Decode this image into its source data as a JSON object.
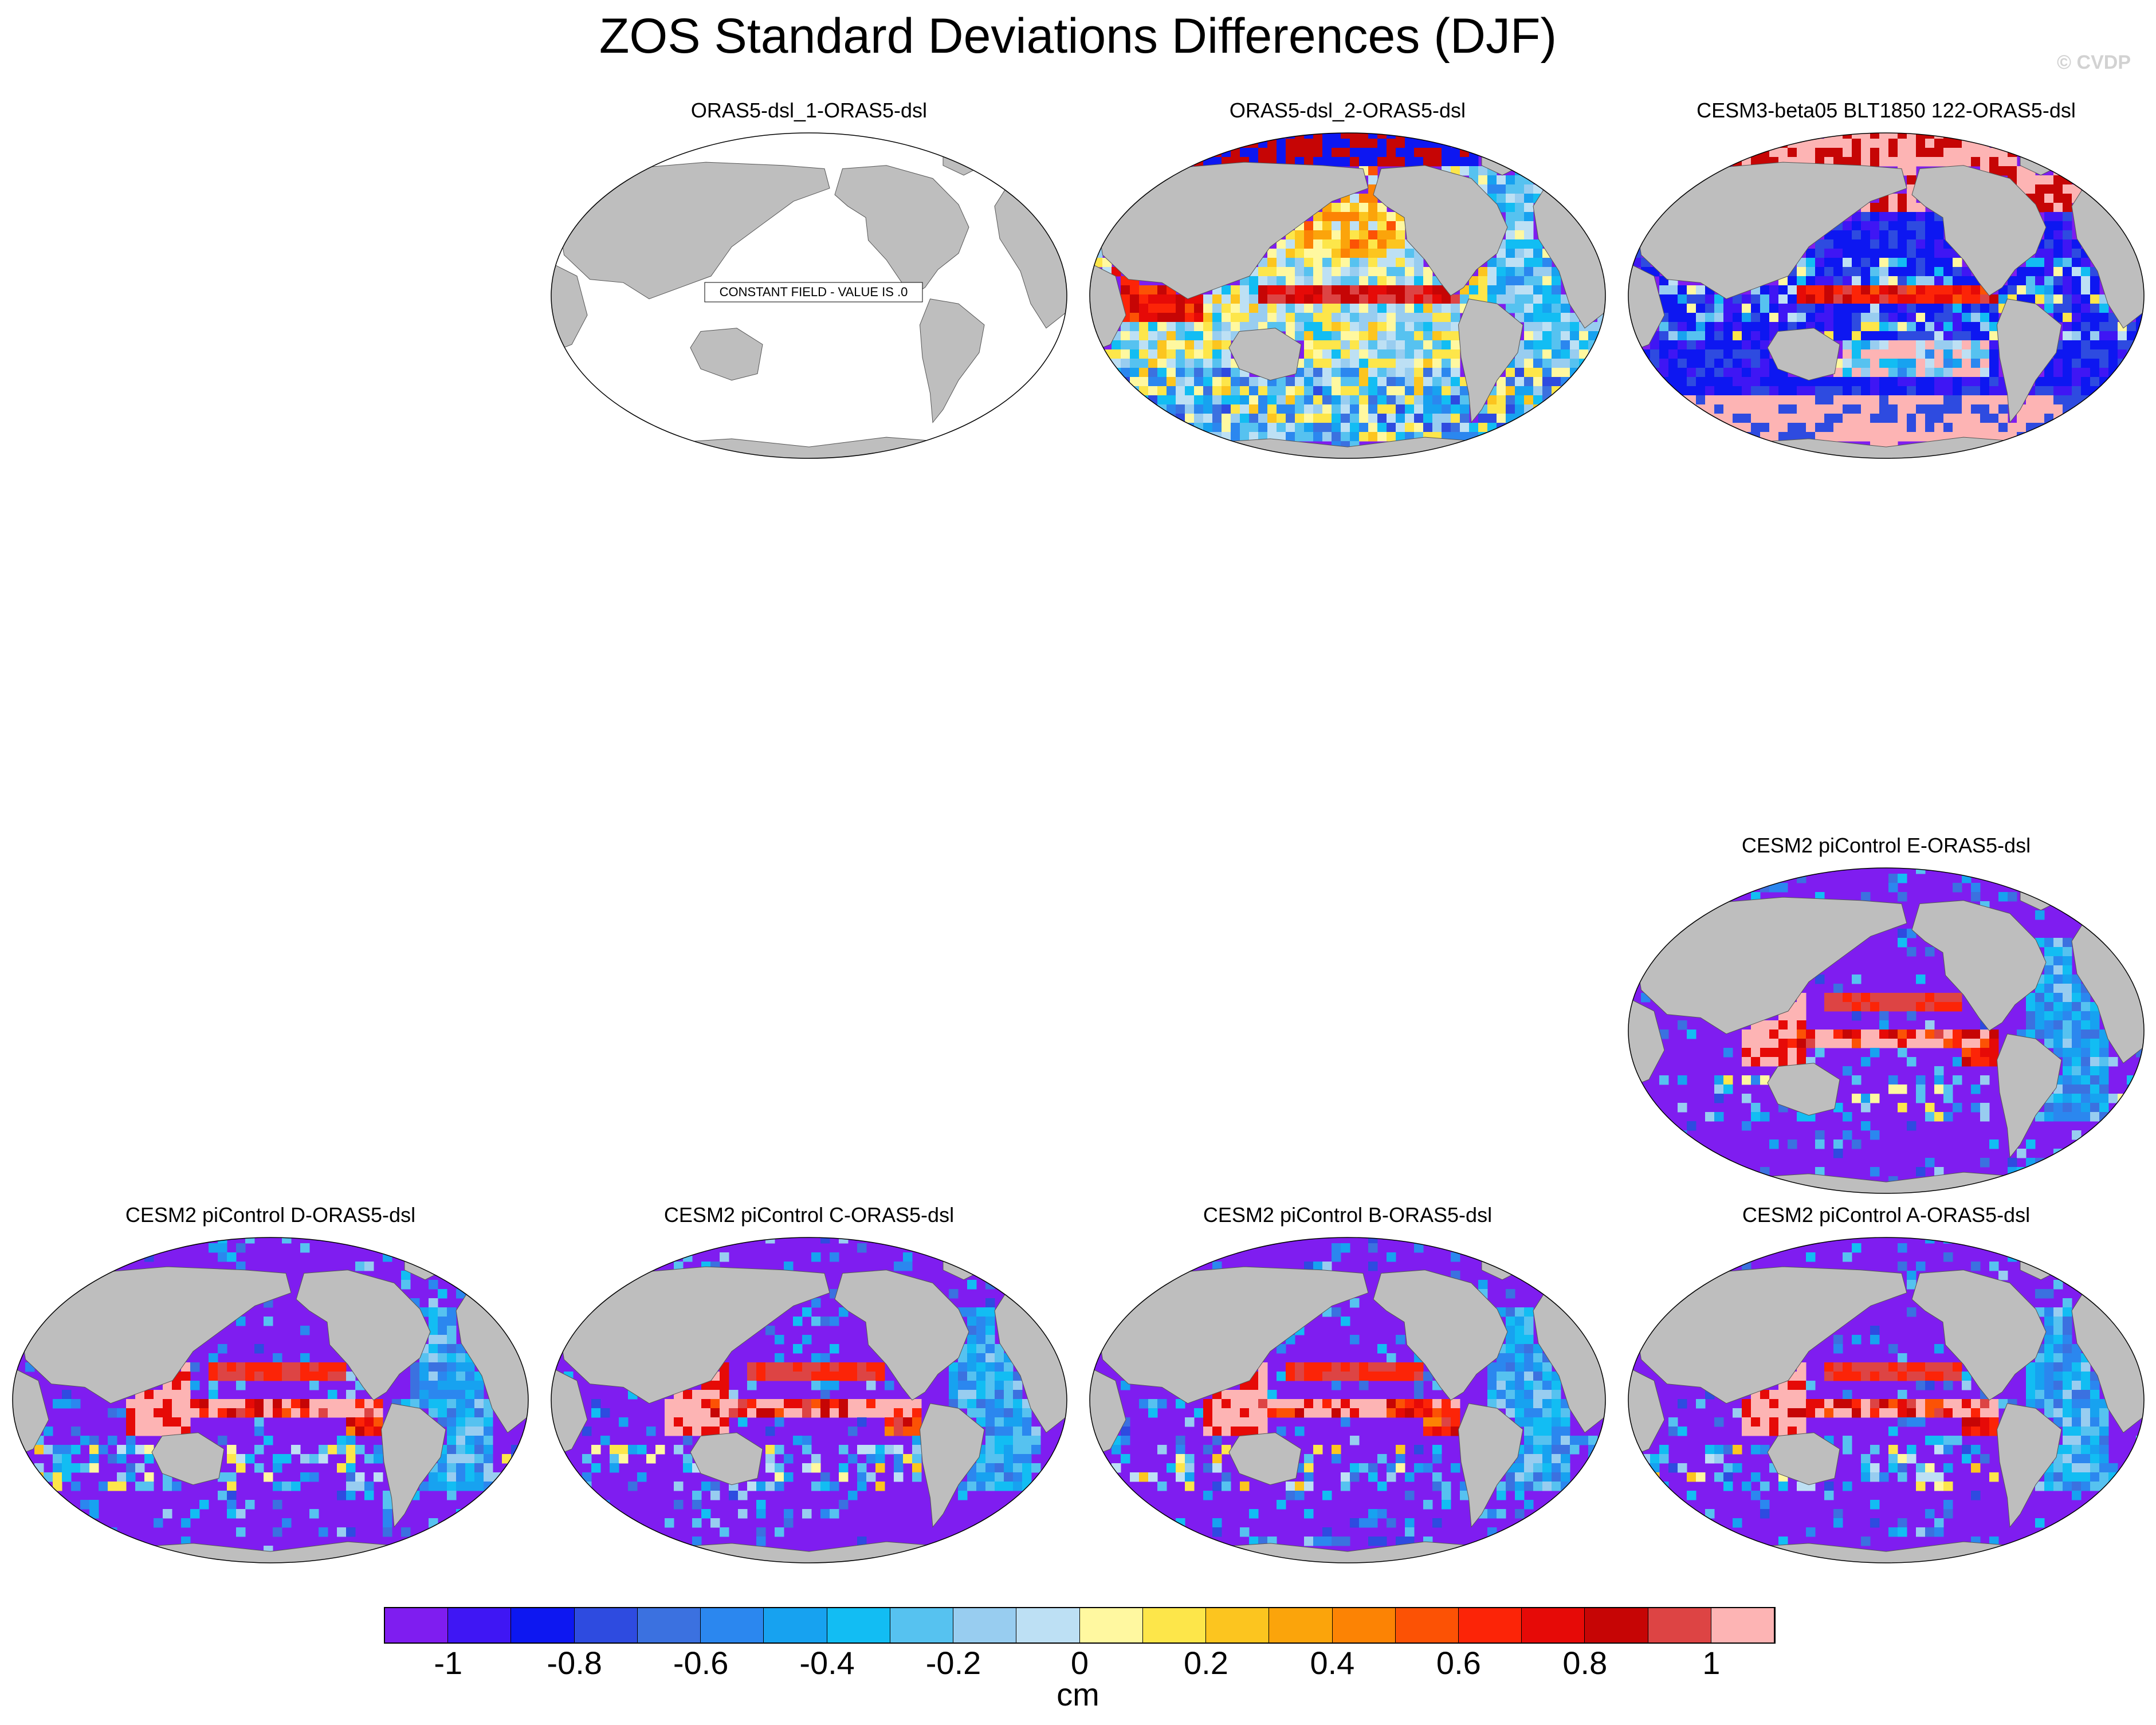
{
  "figure": {
    "title": "ZOS Standard Deviations Differences (DJF)",
    "watermark": "© CVDP"
  },
  "panels": [
    {
      "title": "ORAS5-dsl_1-ORAS5-dsl",
      "pattern": "constant",
      "constant_label": "CONSTANT FIELD - VALUE IS .0"
    },
    {
      "title": "ORAS5-dsl_2-ORAS5-dsl",
      "pattern": "mixed"
    },
    {
      "title": "CESM3-beta05 BLT1850 122-ORAS5-dsl",
      "pattern": "cesm3"
    },
    {
      "title": "CESM2 piControl E-ORAS5-dsl",
      "pattern": "cesm2"
    },
    {
      "title": "CESM2 piControl D-ORAS5-dsl",
      "pattern": "cesm2"
    },
    {
      "title": "CESM2 piControl C-ORAS5-dsl",
      "pattern": "cesm2"
    },
    {
      "title": "CESM2 piControl B-ORAS5-dsl",
      "pattern": "cesm2"
    },
    {
      "title": "CESM2 piControl A-ORAS5-dsl",
      "pattern": "cesm2"
    }
  ],
  "colorbar": {
    "unit": "cm",
    "colors": [
      "#7f1df0",
      "#3f16f4",
      "#0d17f1",
      "#2e4be0",
      "#3b71e0",
      "#2b87ef",
      "#17a2f0",
      "#12bdf3",
      "#56c2f0",
      "#98cdf0",
      "#bde0f4",
      "#fff8a0",
      "#fde64a",
      "#fcc51f",
      "#fba40b",
      "#fc8304",
      "#fc5205",
      "#fc2407",
      "#e60a07",
      "#c60505",
      "#dd4444",
      "#fdb4b4"
    ],
    "tick_labels": [
      "-1",
      "-0.8",
      "-0.6",
      "-0.4",
      "-0.2",
      "0",
      "0.2",
      "0.4",
      "0.6",
      "0.8",
      "1"
    ]
  }
}
